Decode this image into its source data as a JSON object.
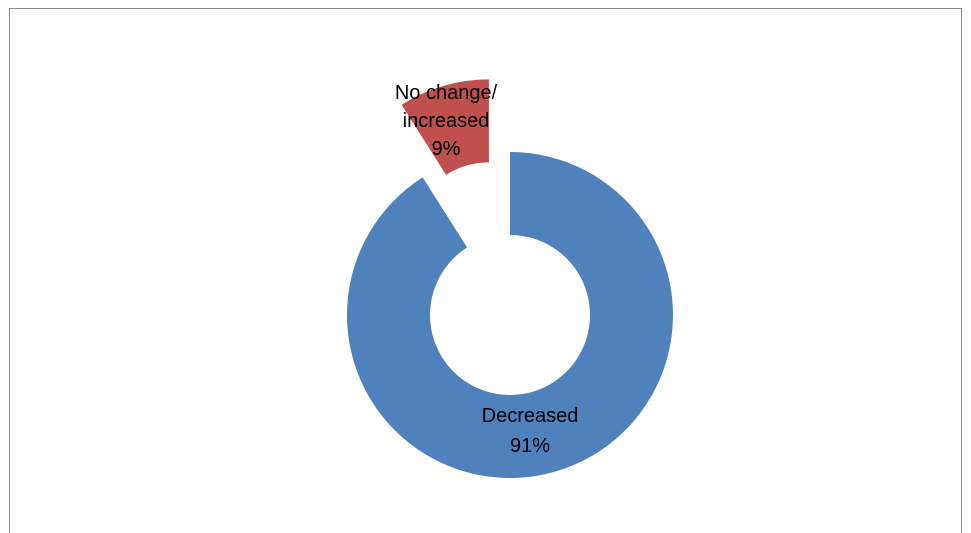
{
  "chart_data": {
    "type": "pie",
    "variant": "doughnut",
    "title": "",
    "exploded": true,
    "legend": "none",
    "slices": [
      {
        "name": "Decreased",
        "value": 91,
        "label": "91%",
        "color": "#4f81bd"
      },
      {
        "name": "No change/ increased",
        "value": 9,
        "label": "9%",
        "color": "#c0504d"
      }
    ]
  }
}
